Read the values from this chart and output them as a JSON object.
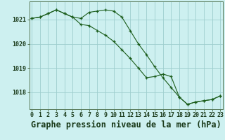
{
  "title": "Graphe pression niveau de la mer (hPa)",
  "background_color": "#cdf0f0",
  "grid_color": "#9ecece",
  "line_color": "#1a5c1a",
  "hours": [
    0,
    1,
    2,
    3,
    4,
    5,
    6,
    7,
    8,
    9,
    10,
    11,
    12,
    13,
    14,
    15,
    16,
    17,
    18,
    19,
    20,
    21,
    22,
    23
  ],
  "line1": [
    1021.05,
    1021.1,
    1021.25,
    1021.4,
    1021.25,
    1021.1,
    1021.05,
    1021.3,
    1021.35,
    1021.4,
    1021.35,
    1021.1,
    1020.55,
    1020.0,
    1019.55,
    1019.05,
    1018.6,
    1018.2,
    1017.8,
    1017.5,
    1017.6,
    1017.65,
    1017.7,
    1017.85
  ],
  "line2": [
    1021.05,
    1021.1,
    1021.25,
    1021.4,
    1021.25,
    1021.1,
    1020.8,
    1020.75,
    1020.55,
    1020.35,
    1020.1,
    1019.75,
    1019.4,
    1019.0,
    1018.6,
    1018.65,
    1018.75,
    1018.65,
    1017.8,
    1017.5,
    1017.6,
    1017.65,
    1017.7,
    1017.85
  ],
  "ylim_min": 1017.3,
  "ylim_max": 1021.75,
  "yticks": [
    1018,
    1019,
    1020,
    1021
  ],
  "xlim_min": -0.3,
  "xlim_max": 23.3,
  "title_fontsize": 8.5,
  "tick_fontsize": 6
}
